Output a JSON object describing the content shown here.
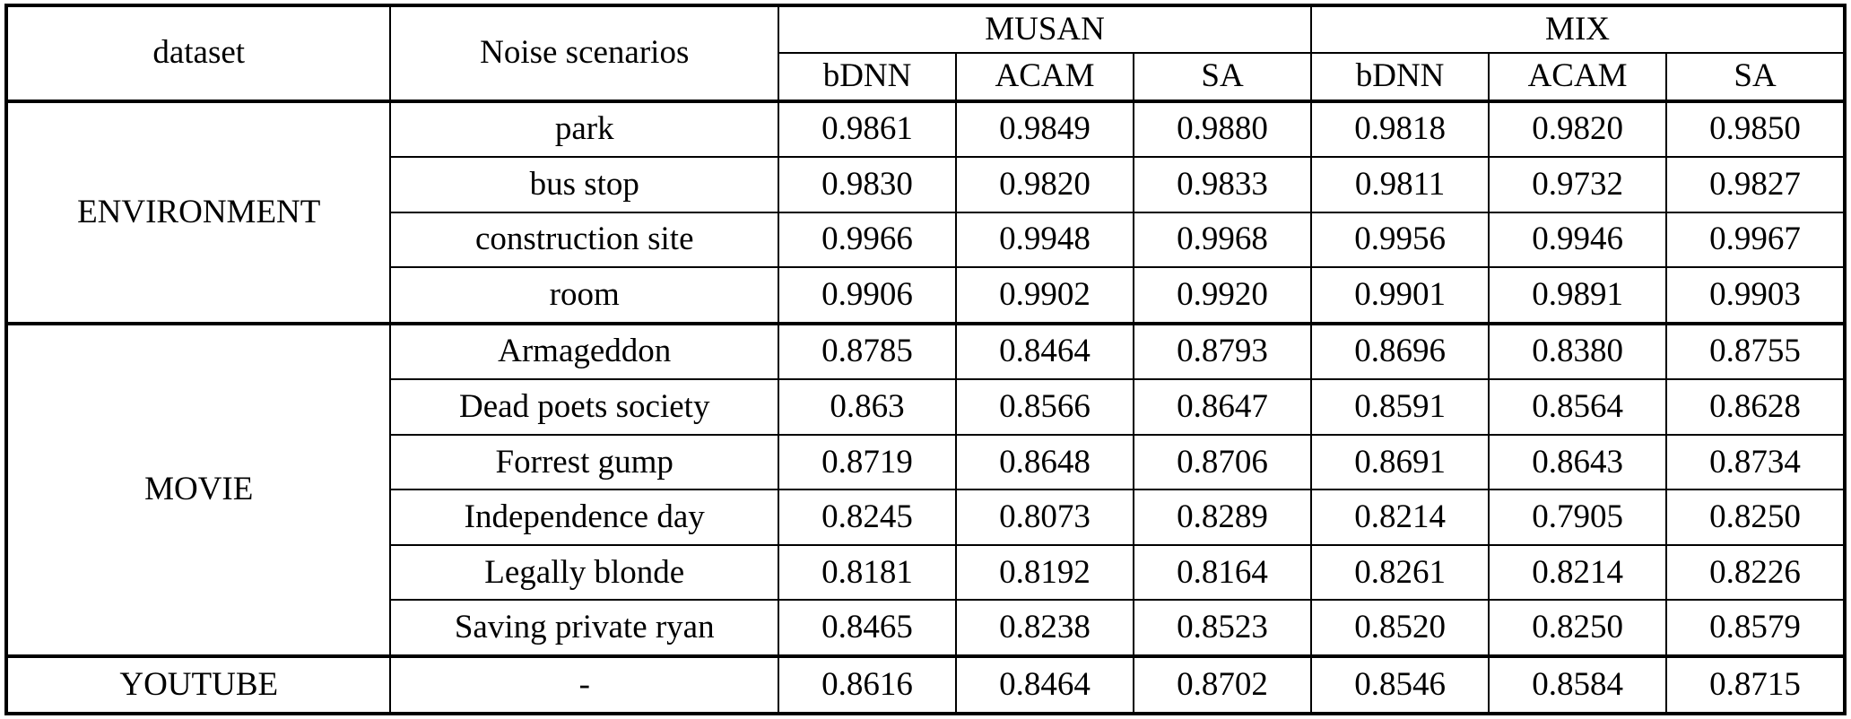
{
  "table": {
    "header": {
      "dataset_label": "dataset",
      "noise_label": "Noise scenarios",
      "groups": [
        {
          "label": "MUSAN",
          "columns": [
            "bDNN",
            "ACAM",
            "SA"
          ]
        },
        {
          "label": "MIX",
          "columns": [
            "bDNN",
            "ACAM",
            "SA"
          ]
        }
      ]
    },
    "sections": [
      {
        "dataset": "ENVIRONMENT",
        "rows": [
          {
            "scenario": "park",
            "values": [
              "0.9861",
              "0.9849",
              "0.9880",
              "0.9818",
              "0.9820",
              "0.9850"
            ],
            "bold": [
              false,
              false,
              true,
              false,
              false,
              true
            ]
          },
          {
            "scenario": "bus stop",
            "values": [
              "0.9830",
              "0.9820",
              "0.9833",
              "0.9811",
              "0.9732",
              "0.9827"
            ],
            "bold": [
              false,
              false,
              true,
              false,
              false,
              true
            ]
          },
          {
            "scenario": "construction site",
            "values": [
              "0.9966",
              "0.9948",
              "0.9968",
              "0.9956",
              "0.9946",
              "0.9967"
            ],
            "bold": [
              false,
              false,
              true,
              false,
              false,
              true
            ]
          },
          {
            "scenario": "room",
            "values": [
              "0.9906",
              "0.9902",
              "0.9920",
              "0.9901",
              "0.9891",
              "0.9903"
            ],
            "bold": [
              false,
              false,
              true,
              false,
              false,
              true
            ]
          }
        ]
      },
      {
        "dataset": "MOVIE",
        "rows": [
          {
            "scenario": "Armageddon",
            "values": [
              "0.8785",
              "0.8464",
              "0.8793",
              "0.8696",
              "0.8380",
              "0.8755"
            ],
            "bold": [
              false,
              false,
              true,
              false,
              false,
              true
            ]
          },
          {
            "scenario": "Dead poets society",
            "values": [
              "0.863",
              "0.8566",
              "0.8647",
              "0.8591",
              "0.8564",
              "0.8628"
            ],
            "bold": [
              false,
              false,
              true,
              false,
              false,
              true
            ]
          },
          {
            "scenario": "Forrest gump",
            "values": [
              "0.8719",
              "0.8648",
              "0.8706",
              "0.8691",
              "0.8643",
              "0.8734"
            ],
            "bold": [
              true,
              false,
              false,
              false,
              false,
              true
            ]
          },
          {
            "scenario": "Independence day",
            "values": [
              "0.8245",
              "0.8073",
              "0.8289",
              "0.8214",
              "0.7905",
              "0.8250"
            ],
            "bold": [
              false,
              false,
              true,
              false,
              false,
              true
            ]
          },
          {
            "scenario": "Legally blonde",
            "values": [
              "0.8181",
              "0.8192",
              "0.8164",
              "0.8261",
              "0.8214",
              "0.8226"
            ],
            "bold": [
              false,
              true,
              false,
              true,
              false,
              false
            ]
          },
          {
            "scenario": "Saving private ryan",
            "values": [
              "0.8465",
              "0.8238",
              "0.8523",
              "0.8520",
              "0.8250",
              "0.8579"
            ],
            "bold": [
              false,
              false,
              true,
              false,
              false,
              true
            ]
          }
        ]
      },
      {
        "dataset": "YOUTUBE",
        "rows": [
          {
            "scenario": "-",
            "values": [
              "0.8616",
              "0.8464",
              "0.8702",
              "0.8546",
              "0.8584",
              "0.8715"
            ],
            "bold": [
              false,
              false,
              true,
              false,
              false,
              true
            ]
          }
        ]
      }
    ]
  }
}
